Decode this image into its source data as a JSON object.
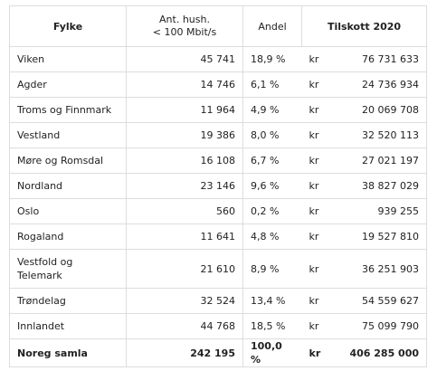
{
  "header": {
    "fylke": "Fylke",
    "ant_line1": "Ant. hush.",
    "ant_line2": "< 100 Mbit/s",
    "andel": "Andel",
    "tilskott": "Tilskott 2020"
  },
  "rows": [
    {
      "fylke": "Viken",
      "ant": "45 741",
      "andel": "18,9 %",
      "kr": "kr",
      "tilskott": "76 731 633"
    },
    {
      "fylke": "Agder",
      "ant": "14 746",
      "andel": "6,1 %",
      "kr": "kr",
      "tilskott": "24 736 934"
    },
    {
      "fylke": "Troms og Finnmark",
      "ant": "11 964",
      "andel": "4,9 %",
      "kr": "kr",
      "tilskott": "20 069 708"
    },
    {
      "fylke": "Vestland",
      "ant": "19 386",
      "andel": "8,0 %",
      "kr": "kr",
      "tilskott": "32 520 113"
    },
    {
      "fylke": "Møre og Romsdal",
      "ant": "16 108",
      "andel": "6,7 %",
      "kr": "kr",
      "tilskott": "27 021 197"
    },
    {
      "fylke": "Nordland",
      "ant": "23 146",
      "andel": "9,6 %",
      "kr": "kr",
      "tilskott": "38 827 029"
    },
    {
      "fylke": "Oslo",
      "ant": "560",
      "andel": "0,2 %",
      "kr": "kr",
      "tilskott": "939 255"
    },
    {
      "fylke": "Rogaland",
      "ant": "11 641",
      "andel": "4,8 %",
      "kr": "kr",
      "tilskott": "19 527 810"
    },
    {
      "fylke": "Vestfold og Telemark",
      "ant": "21 610",
      "andel": "8,9 %",
      "kr": "kr",
      "tilskott": "36 251 903"
    },
    {
      "fylke": "Trøndelag",
      "ant": "32 524",
      "andel": "13,4 %",
      "kr": "kr",
      "tilskott": "54 559 627"
    },
    {
      "fylke": "Innlandet",
      "ant": "44 768",
      "andel": "18,5 %",
      "kr": "kr",
      "tilskott": "75 099 790"
    }
  ],
  "total": {
    "fylke": "Noreg samla",
    "ant": "242 195",
    "andel": "100,0 %",
    "kr": "kr",
    "tilskott": "406 285 000"
  }
}
